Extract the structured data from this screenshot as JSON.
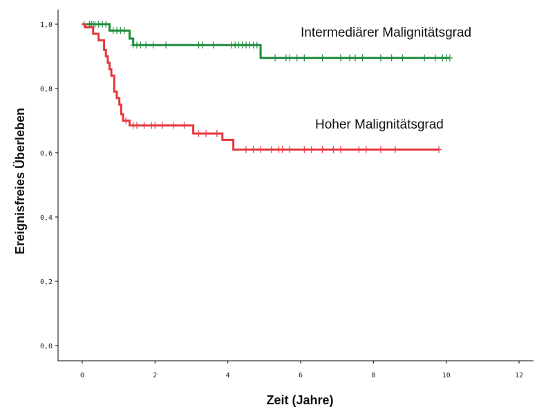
{
  "chart_data": {
    "type": "line",
    "xlabel": "Zeit (Jahre)",
    "ylabel": "Ereignisfreies Überleben",
    "xlim": [
      0,
      12
    ],
    "ylim": [
      0,
      1
    ],
    "xticks": [
      0,
      2,
      4,
      6,
      8,
      10,
      12
    ],
    "yticks": [
      0.0,
      0.2,
      0.4,
      0.6,
      0.8,
      1.0
    ],
    "xtick_labels": [
      "0",
      "2",
      "4",
      "6",
      "8",
      "10",
      "12"
    ],
    "ytick_labels": [
      "0,0",
      "0,2",
      "0,4",
      "0,6",
      "0,8",
      "1,0"
    ],
    "grid": false,
    "series": [
      {
        "name": "Intermediärer Malignitätsgrad",
        "color": "#1e8a3c",
        "steps": [
          [
            0,
            1.0
          ],
          [
            0.75,
            0.98
          ],
          [
            1.3,
            0.955
          ],
          [
            1.4,
            0.935
          ],
          [
            4.9,
            0.895
          ],
          [
            10.1,
            0.895
          ]
        ],
        "censored": [
          0.05,
          0.2,
          0.25,
          0.3,
          0.35,
          0.45,
          0.55,
          0.65,
          0.85,
          0.95,
          1.05,
          1.15,
          1.4,
          1.5,
          1.6,
          1.75,
          1.95,
          2.3,
          3.2,
          3.3,
          3.6,
          4.1,
          4.2,
          4.3,
          4.4,
          4.5,
          4.6,
          4.7,
          4.8,
          5.3,
          5.6,
          5.7,
          5.9,
          6.1,
          6.6,
          7.1,
          7.35,
          7.5,
          7.7,
          8.2,
          8.5,
          8.8,
          9.4,
          9.7,
          9.9,
          10.0,
          10.1
        ]
      },
      {
        "name": "Hoher Malignitätsgrad",
        "color": "#e5373c",
        "steps": [
          [
            0,
            1.0
          ],
          [
            0.08,
            0.99
          ],
          [
            0.3,
            0.97
          ],
          [
            0.45,
            0.95
          ],
          [
            0.6,
            0.92
          ],
          [
            0.65,
            0.9
          ],
          [
            0.7,
            0.88
          ],
          [
            0.75,
            0.86
          ],
          [
            0.8,
            0.84
          ],
          [
            0.88,
            0.79
          ],
          [
            0.95,
            0.77
          ],
          [
            1.02,
            0.75
          ],
          [
            1.07,
            0.72
          ],
          [
            1.12,
            0.7
          ],
          [
            1.3,
            0.685
          ],
          [
            3.05,
            0.66
          ],
          [
            3.85,
            0.64
          ],
          [
            4.15,
            0.61
          ],
          [
            9.8,
            0.61
          ]
        ],
        "censored": [
          1.2,
          1.4,
          1.5,
          1.7,
          1.9,
          2.0,
          2.2,
          2.5,
          2.8,
          3.2,
          3.4,
          3.7,
          4.5,
          4.7,
          4.9,
          5.2,
          5.4,
          5.5,
          5.7,
          6.1,
          6.3,
          6.6,
          6.9,
          7.1,
          7.6,
          7.8,
          8.2,
          8.6,
          9.8
        ]
      }
    ]
  }
}
